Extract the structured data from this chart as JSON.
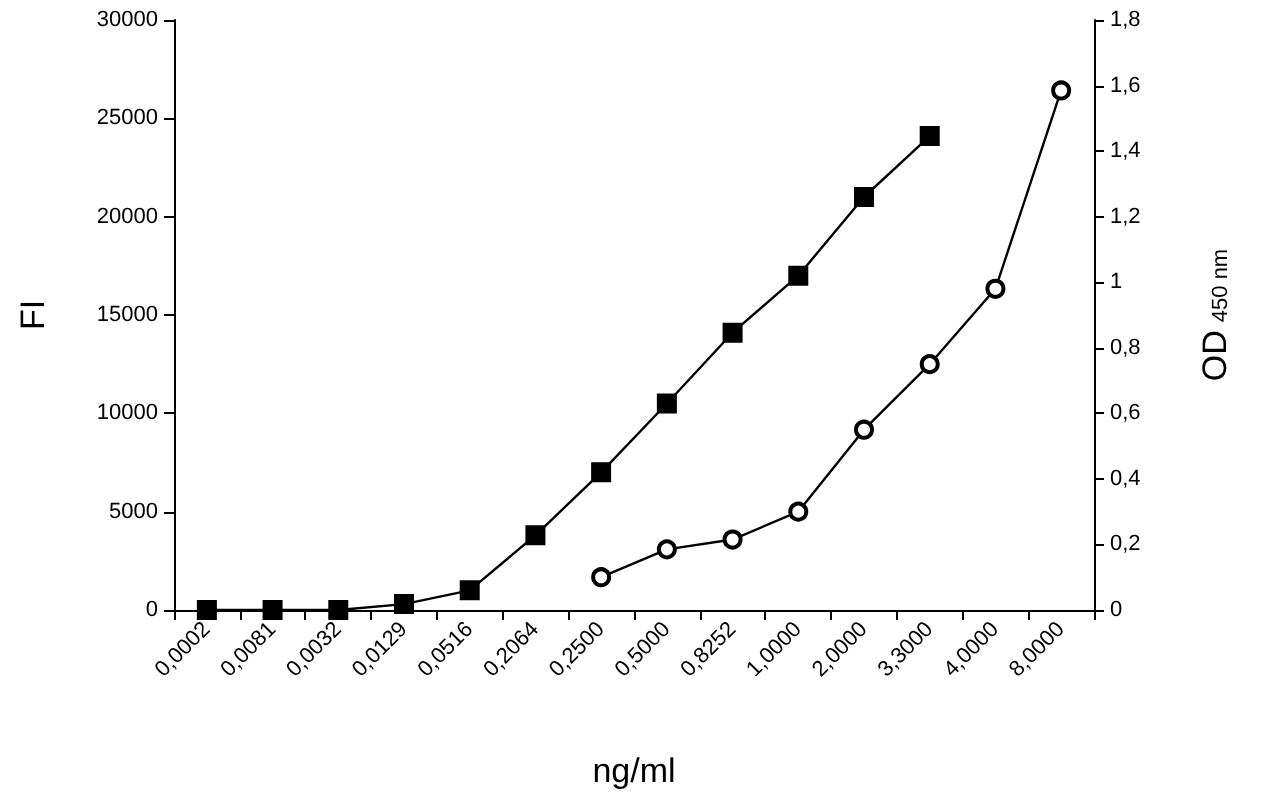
{
  "chart_data": {
    "type": "line",
    "xlabel": "ng/ml",
    "ylabel": "FI",
    "y2label": "OD$_{450 nm}$",
    "categories": [
      "0,0002",
      "0,0081",
      "0,0032",
      "0,0129",
      "0,0516",
      "0,2064",
      "0,2500",
      "0,5000",
      "0,8252",
      "1,0000",
      "2,0000",
      "3,3000",
      "4,0000",
      "8,0000"
    ],
    "series": [
      {
        "color": "#000000",
        "marker": "square",
        "values": [
          0,
          0,
          0,
          300,
          1000,
          3800,
          7000,
          10500,
          14100,
          17000,
          21000,
          24100,
          null,
          null
        ]
      },
      {
        "color": "#000000",
        "marker": "circle",
        "axis": "y2",
        "values": [
          null,
          null,
          null,
          null,
          null,
          null,
          0.1,
          0.185,
          0.215,
          0.3,
          0.55,
          0.75,
          0.98,
          1.585
        ]
      }
    ],
    "ylim": [
      0,
      30000
    ],
    "yticks": [
      0,
      5000,
      10000,
      15000,
      20000,
      25000,
      30000
    ],
    "y2lim": [
      0,
      1.8
    ],
    "y2ticks": [
      0,
      {
        "value": 0.2,
        "label": "0,2"
      },
      {
        "value": 0.4,
        "label": "0,4"
      },
      {
        "value": 0.6,
        "label": "0,6"
      },
      {
        "value": 0.8,
        "label": "0,8"
      },
      1,
      {
        "value": 1.2,
        "label": "1,2"
      },
      {
        "value": 1.4,
        "label": "1,4"
      },
      {
        "value": 1.6,
        "label": "1,6"
      },
      {
        "value": 1.8,
        "label": "1,8"
      }
    ],
    "grid": false,
    "line_style": "solid"
  }
}
